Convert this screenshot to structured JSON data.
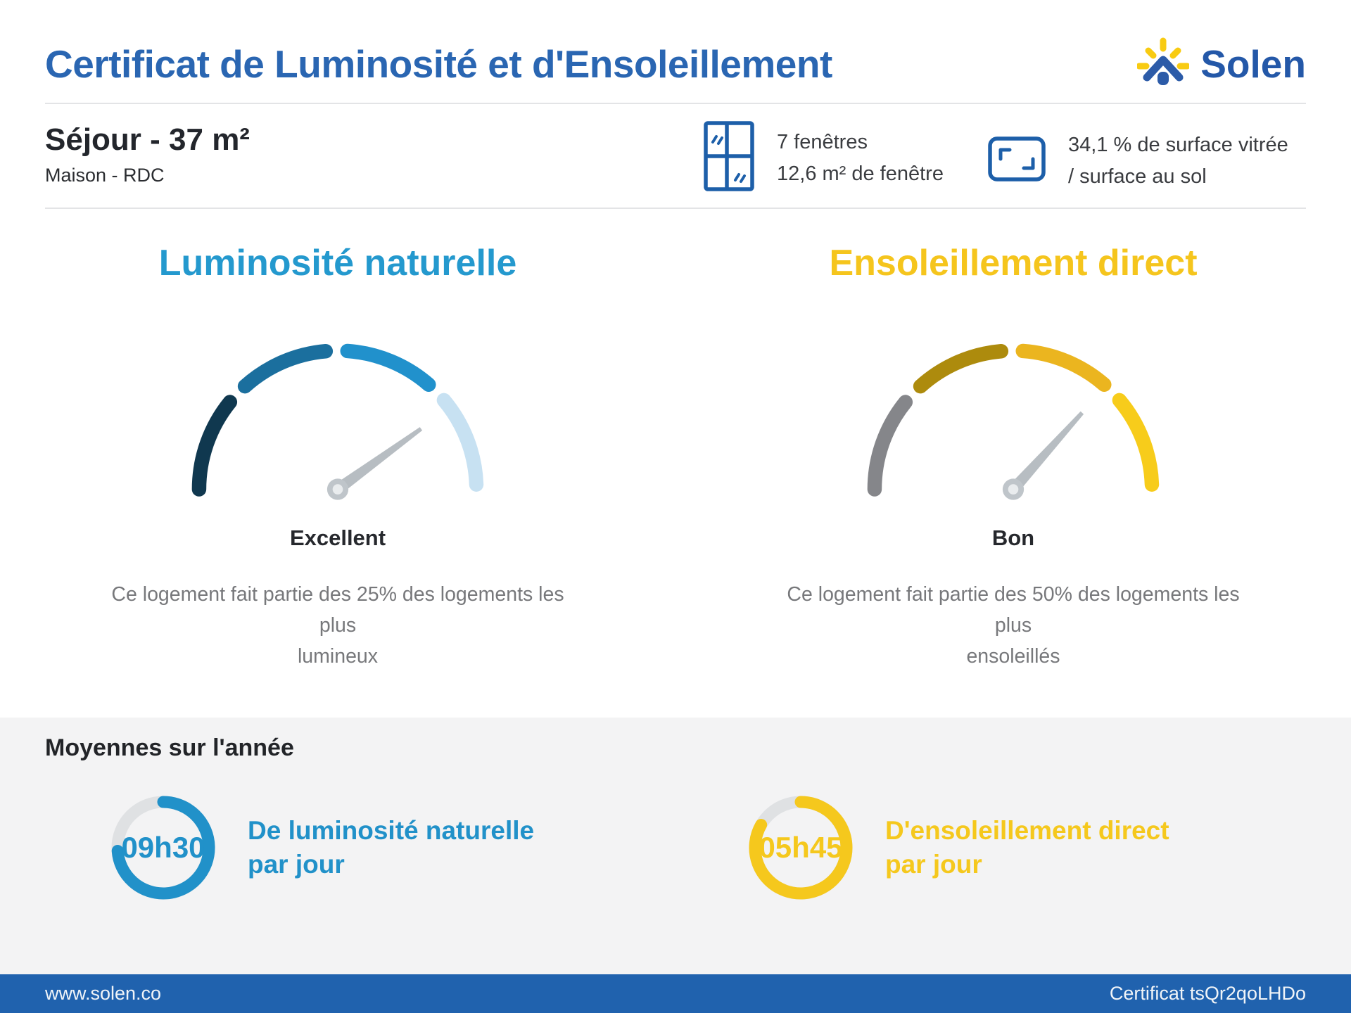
{
  "header": {
    "title": "Certificat de Luminosité et d'Ensoleillement",
    "title_color": "#2A66B2",
    "brand_name": "Solen",
    "brand_color": "#2458A8"
  },
  "property": {
    "room_title": "Séjour - 37 m²",
    "room_subtitle": "Maison - RDC",
    "windows_line1": "7 fenêtres",
    "windows_line2": "12,6 m² de fenêtre",
    "glazing_line1": "34,1 % de surface vitrée",
    "glazing_line2": "/ surface au sol"
  },
  "gauges": [
    {
      "title": "Luminosité naturelle",
      "title_color": "#2499CE",
      "rating": "Excellent",
      "description_line1": "Ce logement fait partie des 25% des logements les plus",
      "description_line2": "lumineux",
      "needle_deg": 36,
      "needle_color": "#B7BDC2",
      "segments": [
        {
          "from": 180,
          "to": 141,
          "color": "#10384F"
        },
        {
          "from": 132,
          "to": 95,
          "color": "#1B6F9E"
        },
        {
          "from": 86,
          "to": 49,
          "color": "#2191CC"
        },
        {
          "from": 40,
          "to": 2,
          "color": "#C7E1F2"
        }
      ]
    },
    {
      "title": "Ensoleillement direct",
      "title_color": "#F5C51D",
      "rating": "Bon",
      "description_line1": "Ce logement fait partie des 50% des logements les plus",
      "description_line2": "ensoleillés",
      "needle_deg": 48,
      "needle_color": "#B7BDC2",
      "segments": [
        {
          "from": 180,
          "to": 141,
          "color": "#85868A"
        },
        {
          "from": 132,
          "to": 95,
          "color": "#AD8B0D"
        },
        {
          "from": 86,
          "to": 49,
          "color": "#EBB51F"
        },
        {
          "from": 40,
          "to": 2,
          "color": "#F7CC1B"
        }
      ]
    }
  ],
  "averages": {
    "heading": "Moyennes sur l'année",
    "items": [
      {
        "value": "09h30",
        "label_line1": "De luminosité naturelle",
        "label_line2": "par jour",
        "color": "#2191C9",
        "track_color": "#DFE1E3",
        "sweep_deg": 266
      },
      {
        "value": "05h45",
        "label_line1": "D'ensoleillement direct",
        "label_line2": "par jour",
        "color": "#F5C81D",
        "track_color": "#DFE1E3",
        "sweep_deg": 300
      }
    ]
  },
  "footer": {
    "left_text": "www.solen.co",
    "right_text": "Certificat tsQr2qoLHDo",
    "bg_color": "#2062AE"
  }
}
